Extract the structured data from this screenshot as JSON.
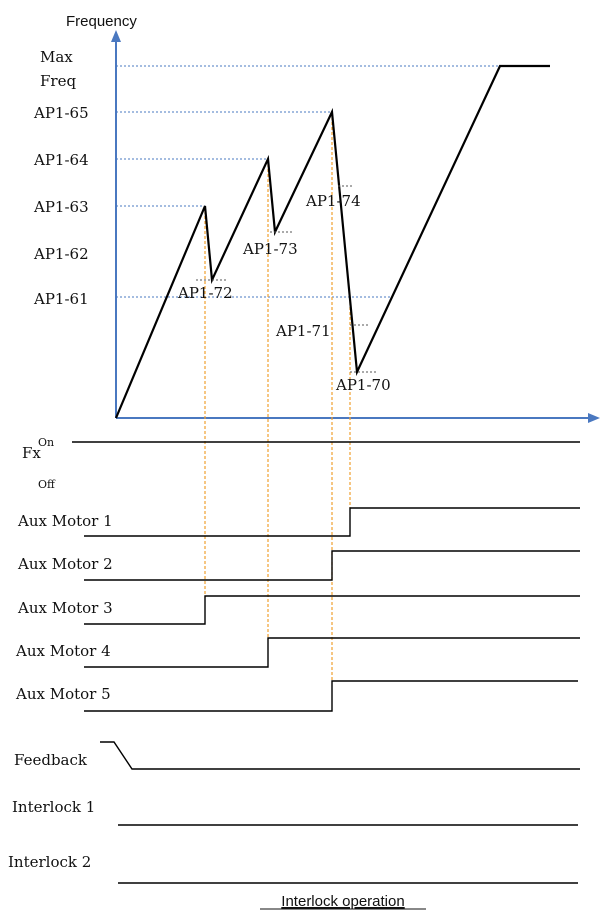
{
  "axes": {
    "y_label": "Frequency"
  },
  "levels": {
    "max_line1": "Max",
    "max_line2": "Freq",
    "ap1_65": "AP1-65",
    "ap1_64": "AP1-64",
    "ap1_63": "AP1-63",
    "ap1_62": "AP1-62",
    "ap1_61": "AP1-61"
  },
  "annotations": {
    "ap1_72": "AP1-72",
    "ap1_73": "AP1-73",
    "ap1_74": "AP1-74",
    "ap1_71": "AP1-71",
    "ap1_70": "AP1-70"
  },
  "signals": {
    "fx": "Fx",
    "fx_on": "On",
    "fx_off": "Off",
    "aux1": "Aux Motor 1",
    "aux2": "Aux Motor 2",
    "aux3": "Aux Motor 3",
    "aux4": "Aux Motor 4",
    "aux5": "Aux Motor 5",
    "feedback": "Feedback",
    "interlock1": "Interlock 1",
    "interlock2": "Interlock 2"
  },
  "caption": "Interlock operation",
  "colors": {
    "axis": "#4a78c0",
    "guide_vertical": "#f0a030",
    "trace": "#000000"
  }
}
